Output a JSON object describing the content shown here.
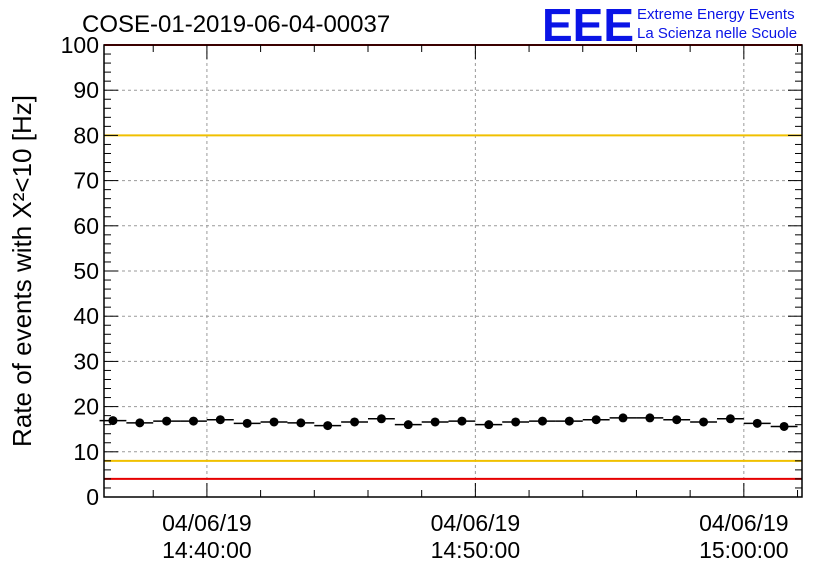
{
  "header": {
    "run_title": "COSE-01-2019-06-04-00037",
    "logo_text": "EEE",
    "logo_line1": "Extreme Energy Events",
    "logo_line2": "La Scienza nelle Scuole"
  },
  "colors": {
    "logo": "#0a14e6",
    "red_line": "#e60000",
    "yellow_line": "#f0c000",
    "points": "#000000",
    "grid": "#9a9a9a"
  },
  "chart_data": {
    "type": "scatter",
    "title": "COSE-01-2019-06-04-00037",
    "xlabel": "",
    "ylabel": "Rate of events with X²<10 [Hz]",
    "ylim": [
      0,
      100
    ],
    "yticks": [
      0,
      10,
      20,
      30,
      40,
      50,
      60,
      70,
      80,
      90,
      100
    ],
    "xlim": [
      "2019-06-04 14:36:10",
      "2019-06-04 15:02:10"
    ],
    "xticks": [
      {
        "date": "04/06/19",
        "time": "14:40:00",
        "at": "2019-06-04 14:40:00"
      },
      {
        "date": "04/06/19",
        "time": "14:50:00",
        "at": "2019-06-04 14:50:00"
      },
      {
        "date": "04/06/19",
        "time": "15:00:00",
        "at": "2019-06-04 15:00:00"
      }
    ],
    "grid": true,
    "reference_lines": [
      {
        "y": 100,
        "color": "red"
      },
      {
        "y": 80,
        "color": "yellow"
      },
      {
        "y": 8,
        "color": "yellow"
      },
      {
        "y": 4,
        "color": "red"
      }
    ],
    "series": [
      {
        "x": [
          "2019-06-04 14:36:30",
          "2019-06-04 14:37:30",
          "2019-06-04 14:38:30",
          "2019-06-04 14:39:30",
          "2019-06-04 14:40:30",
          "2019-06-04 14:41:30",
          "2019-06-04 14:42:30",
          "2019-06-04 14:43:30",
          "2019-06-04 14:44:30",
          "2019-06-04 14:45:30",
          "2019-06-04 14:46:30",
          "2019-06-04 14:47:30",
          "2019-06-04 14:48:30",
          "2019-06-04 14:49:30",
          "2019-06-04 14:50:30",
          "2019-06-04 14:51:30",
          "2019-06-04 14:52:30",
          "2019-06-04 14:53:30",
          "2019-06-04 14:54:30",
          "2019-06-04 14:55:30",
          "2019-06-04 14:56:30",
          "2019-06-04 14:57:30",
          "2019-06-04 14:58:30",
          "2019-06-04 14:59:30",
          "2019-06-04 15:00:30",
          "2019-06-04 15:01:30"
        ],
        "values": [
          16.9,
          16.4,
          16.8,
          16.8,
          17.1,
          16.3,
          16.6,
          16.4,
          15.8,
          16.6,
          17.3,
          16.0,
          16.6,
          16.8,
          16.0,
          16.6,
          16.8,
          16.8,
          17.1,
          17.5,
          17.5,
          17.1,
          16.6,
          17.3,
          16.3,
          15.6
        ]
      }
    ]
  }
}
